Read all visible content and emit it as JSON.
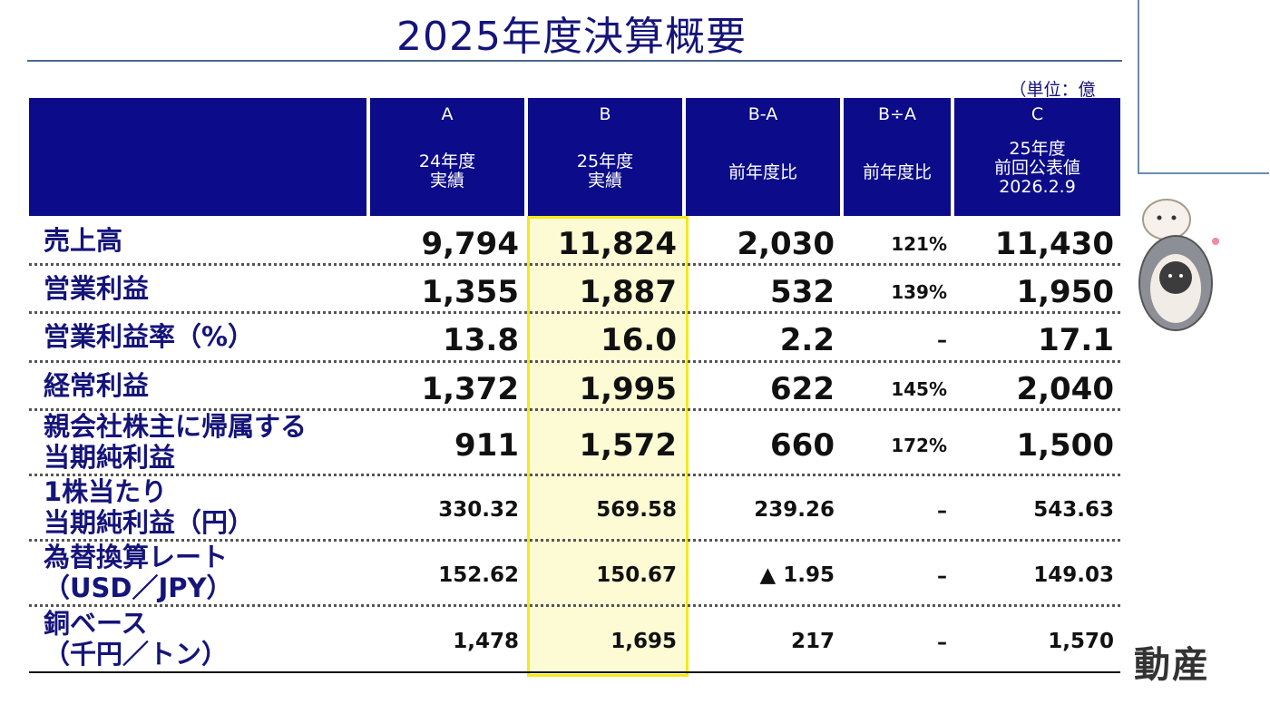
{
  "title": "2025年度決算概要",
  "unit": "（単位：億円）",
  "columns": [
    {
      "code": "A",
      "label": "24年度\n実績"
    },
    {
      "code": "B",
      "label": "25年度\n実績"
    },
    {
      "code": "B-A",
      "label": "前年度比"
    },
    {
      "code": "B÷A",
      "label": "前年度比"
    },
    {
      "code": "C",
      "label": "25年度\n前回公表値\n2026.2.9"
    }
  ],
  "rows": [
    {
      "label": "売上高",
      "a": "9,794",
      "b": "11,824",
      "ba": "2,030",
      "ratio": "121%",
      "c": "11,430"
    },
    {
      "label": "営業利益",
      "a": "1,355",
      "b": "1,887",
      "ba": "532",
      "ratio": "139%",
      "c": "1,950"
    },
    {
      "label": "営業利益率（%）",
      "a": "13.8",
      "b": "16.0",
      "ba": "2.2",
      "ratio": "–",
      "c": "17.1"
    },
    {
      "label": "経常利益",
      "a": "1,372",
      "b": "1,995",
      "ba": "622",
      "ratio": "145%",
      "c": "2,040"
    },
    {
      "label": "親会社株主に帰属する\n当期純利益",
      "a": "911",
      "b": "1,572",
      "ba": "660",
      "ratio": "172%",
      "c": "1,500"
    },
    {
      "label": "1株当たり\n当期純利益（円）",
      "a": "330.32",
      "b": "569.58",
      "ba": "239.26",
      "ratio": "–",
      "c": "543.63"
    },
    {
      "label": "為替換算レート\n（USD／JPY）",
      "a": "152.62",
      "b": "150.67",
      "ba": "▲ 1.95",
      "ratio": "–",
      "c": "149.03"
    },
    {
      "label": "銅ベース\n（千円／トン）",
      "a": "1,478",
      "b": "1,695",
      "ba": "217",
      "ratio": "–",
      "c": "1,570"
    }
  ],
  "logo_text": "動産"
}
